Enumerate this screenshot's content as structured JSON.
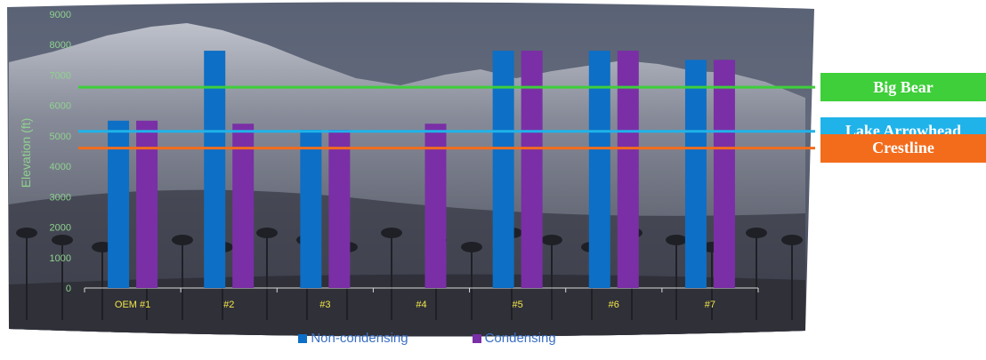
{
  "chart_data": {
    "type": "bar",
    "ylabel": "Elevation (ft)",
    "ylim": [
      0,
      9000
    ],
    "yticks": [
      0,
      1000,
      2000,
      3000,
      4000,
      5000,
      6000,
      7000,
      8000,
      9000
    ],
    "categories": [
      "OEM #1",
      "#2",
      "#3",
      "#4",
      "#5",
      "#6",
      "#7"
    ],
    "series": [
      {
        "name": "Non-condensing",
        "color": "#0d6fc6",
        "values": [
          5500,
          7800,
          5200,
          null,
          7800,
          7800,
          7500
        ]
      },
      {
        "name": "Condensing",
        "color": "#7a2fa6",
        "values": [
          5500,
          5400,
          5200,
          5400,
          7800,
          7800,
          7500
        ]
      }
    ],
    "reference_lines": [
      {
        "name": "Big Bear",
        "value": 6600,
        "color": "#3ecf3a"
      },
      {
        "name": "Lake Arrowhead",
        "value": 5150,
        "color": "#1fb3ea"
      },
      {
        "name": "Crestline",
        "value": 4600,
        "color": "#f36c1c"
      }
    ],
    "legend_position": "bottom",
    "grid": false
  }
}
